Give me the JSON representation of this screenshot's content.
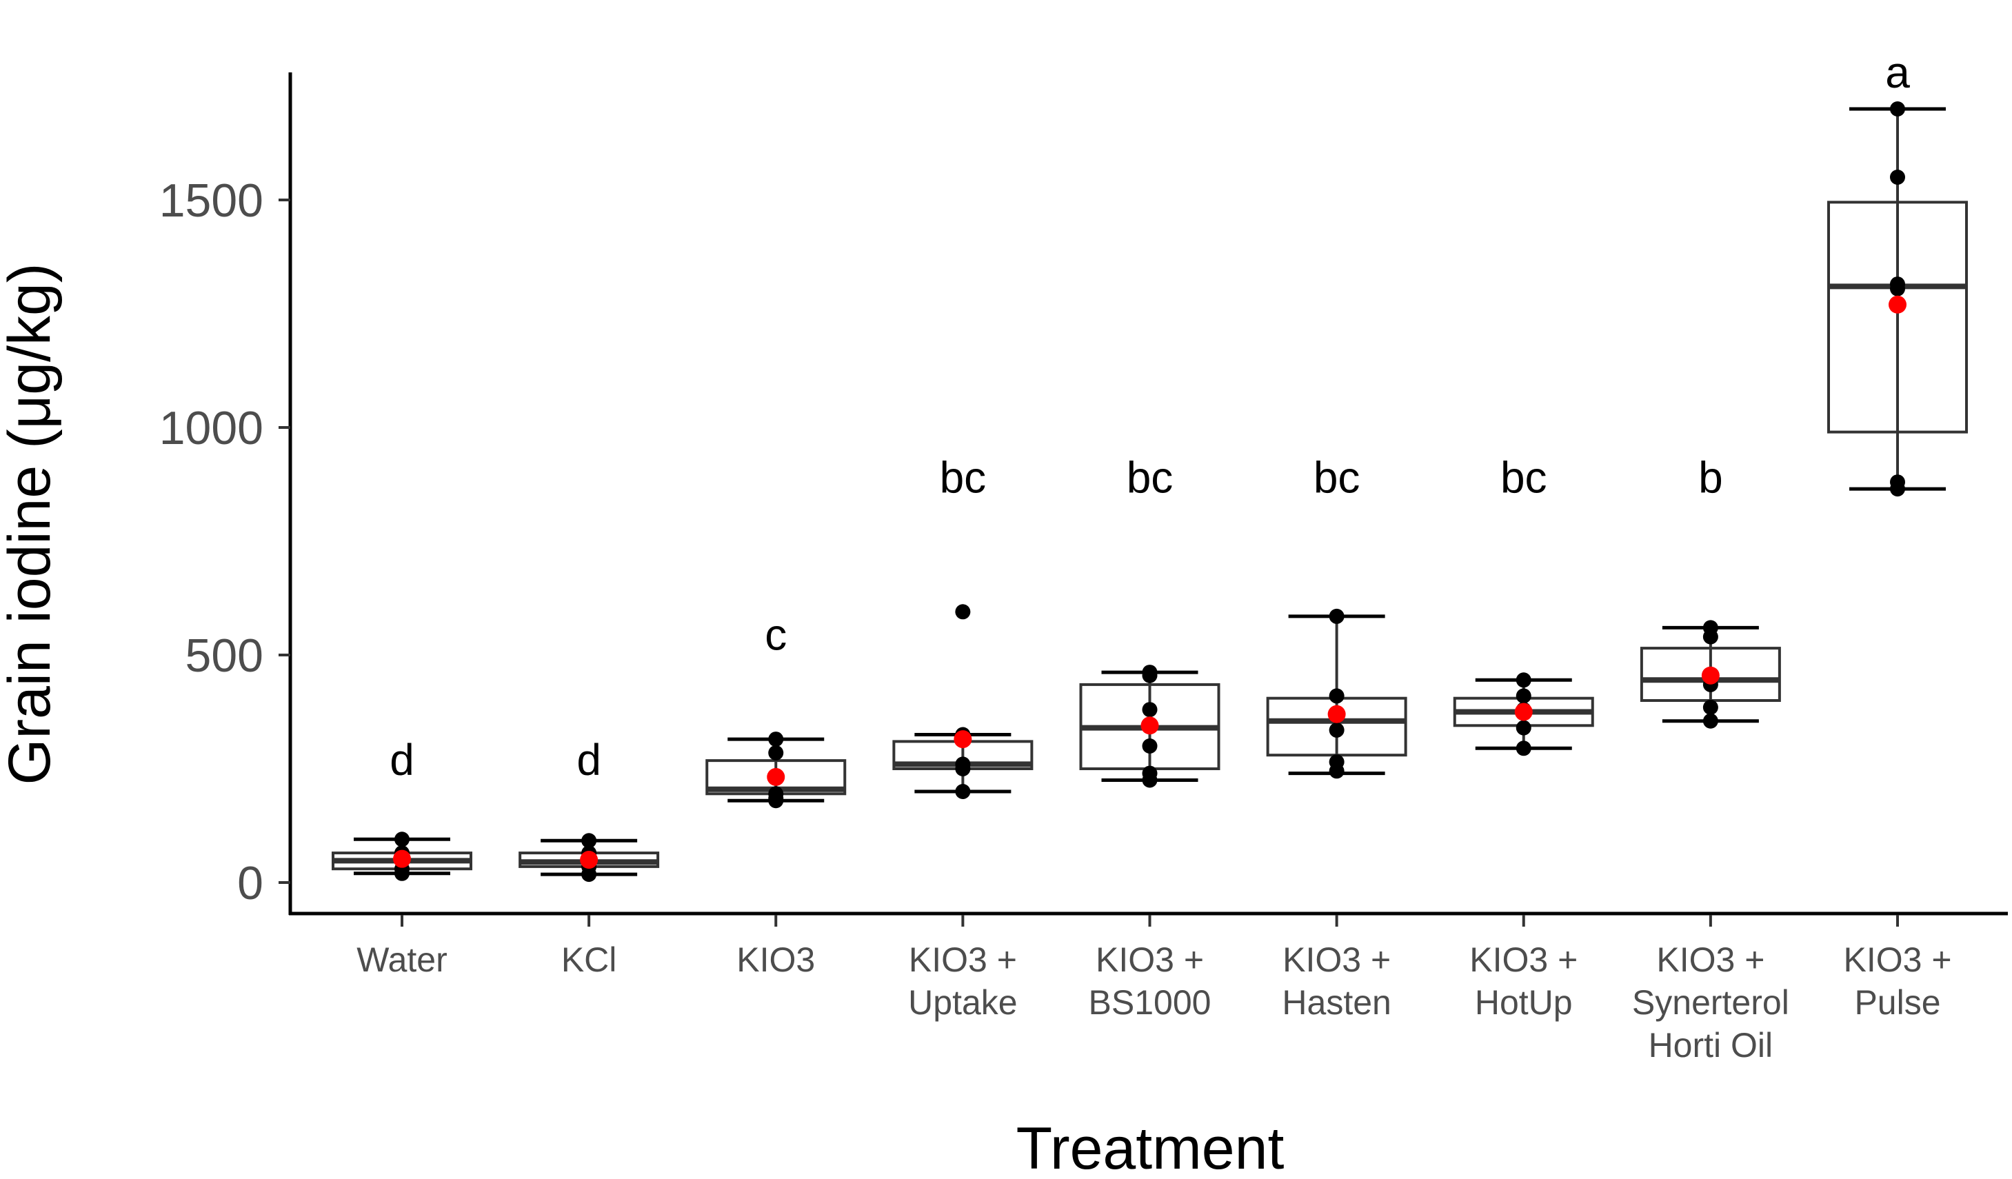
{
  "chart_data": {
    "type": "boxplot",
    "title": "",
    "xlabel": "Treatment",
    "ylabel": "Grain iodine (μg/kg)",
    "ylim": [
      -60,
      1780
    ],
    "yticks": [
      0,
      500,
      1000,
      1500
    ],
    "grid": false,
    "legend": "none",
    "colors": {
      "box_stroke": "#333333",
      "points": "#000000",
      "mean": "#ff0000",
      "axis": "#000000"
    },
    "groups": [
      {
        "name": "Water",
        "label_lines": [
          "Water"
        ],
        "letter": "d",
        "letter_y": 270,
        "q1": 30,
        "median": 48,
        "q3": 65,
        "whisker_low": 20,
        "whisker_high": 95,
        "mean": 52,
        "points": [
          95,
          65,
          48,
          30,
          20
        ]
      },
      {
        "name": "KCl",
        "label_lines": [
          "KCl"
        ],
        "letter": "d",
        "letter_y": 270,
        "q1": 35,
        "median": 45,
        "q3": 65,
        "whisker_low": 18,
        "whisker_high": 92,
        "mean": 50,
        "points": [
          92,
          65,
          45,
          35,
          18
        ]
      },
      {
        "name": "KIO3",
        "label_lines": [
          "KIO3"
        ],
        "letter": "c",
        "letter_y": 545,
        "q1": 195,
        "median": 205,
        "q3": 268,
        "whisker_low": 180,
        "whisker_high": 315,
        "mean": 232,
        "points": [
          315,
          285,
          195,
          185,
          180
        ]
      },
      {
        "name": "KIO3 + Uptake",
        "label_lines": [
          "KIO3 +",
          "Uptake"
        ],
        "letter": "bc",
        "letter_y": 890,
        "q1": 250,
        "median": 260,
        "q3": 310,
        "whisker_low": 200,
        "whisker_high": 325,
        "mean": 315,
        "points": [
          595,
          325,
          260,
          250,
          200
        ]
      },
      {
        "name": "KIO3 + BS1000",
        "label_lines": [
          "KIO3 +",
          "BS1000"
        ],
        "letter": "bc",
        "letter_y": 890,
        "q1": 250,
        "median": 340,
        "q3": 435,
        "whisker_low": 225,
        "whisker_high": 462,
        "mean": 345,
        "points": [
          462,
          455,
          380,
          300,
          240,
          225
        ]
      },
      {
        "name": "KIO3 + Hasten",
        "label_lines": [
          "KIO3 +",
          "Hasten"
        ],
        "letter": "bc",
        "letter_y": 890,
        "q1": 280,
        "median": 355,
        "q3": 405,
        "whisker_low": 240,
        "whisker_high": 585,
        "mean": 370,
        "points": [
          585,
          410,
          335,
          265,
          245
        ]
      },
      {
        "name": "KIO3 + HotUp",
        "label_lines": [
          "KIO3 +",
          "HotUp"
        ],
        "letter": "bc",
        "letter_y": 890,
        "q1": 345,
        "median": 375,
        "q3": 405,
        "whisker_low": 295,
        "whisker_high": 445,
        "mean": 375,
        "points": [
          445,
          410,
          380,
          340,
          295
        ]
      },
      {
        "name": "KIO3 + Synerterol Horti Oil",
        "label_lines": [
          "KIO3 +",
          "Synerterol",
          "Horti Oil"
        ],
        "letter": "b",
        "letter_y": 890,
        "q1": 400,
        "median": 445,
        "q3": 515,
        "whisker_low": 355,
        "whisker_high": 560,
        "mean": 455,
        "points": [
          560,
          540,
          435,
          385,
          355
        ]
      },
      {
        "name": "KIO3 + Pulse",
        "label_lines": [
          "KIO3 +",
          "Pulse"
        ],
        "letter": "a",
        "letter_y": 1780,
        "q1": 990,
        "median": 1310,
        "q3": 1495,
        "whisker_low": 865,
        "whisker_high": 1700,
        "mean": 1270,
        "points": [
          1700,
          1550,
          1315,
          1305,
          880,
          865
        ]
      }
    ]
  }
}
